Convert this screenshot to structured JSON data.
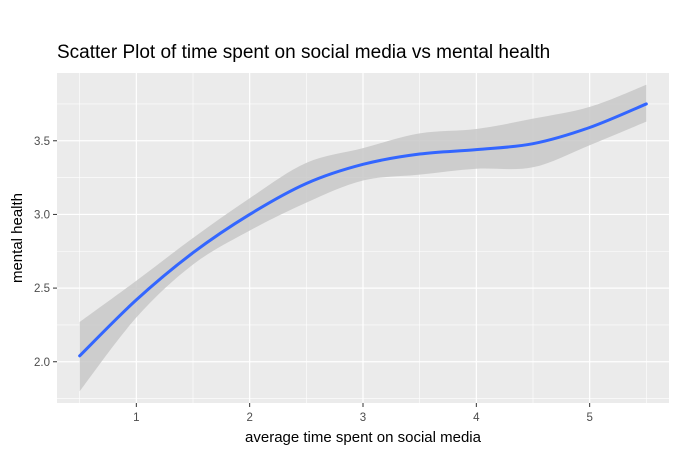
{
  "chart_data": {
    "type": "line",
    "title": "Scatter Plot of time spent on social media vs mental health",
    "xlabel": "average time spent on social media",
    "ylabel": "mental health",
    "xlim": [
      0.3,
      5.7
    ],
    "ylim": [
      1.72,
      3.96
    ],
    "x_ticks": [
      1,
      2,
      3,
      4,
      5
    ],
    "x_tick_labels": [
      "1",
      "2",
      "3",
      "4",
      "5"
    ],
    "y_ticks": [
      2.0,
      2.5,
      3.0,
      3.5
    ],
    "y_tick_labels": [
      "2.0",
      "2.5",
      "3.0",
      "3.5"
    ],
    "grid": true,
    "legend": "none",
    "colors": {
      "panel": "#ebebeb",
      "grid": "#ffffff",
      "line": "#3366ff",
      "ribbon": "#c8c8c8"
    },
    "series": [
      {
        "x": [
          0.5,
          1.0,
          1.5,
          2.0,
          2.5,
          3.0,
          3.5,
          4.0,
          4.5,
          5.0,
          5.5
        ],
        "y": [
          2.04,
          2.42,
          2.74,
          3.0,
          3.21,
          3.34,
          3.41,
          3.44,
          3.48,
          3.59,
          3.75
        ],
        "lower": [
          1.8,
          2.3,
          2.66,
          2.89,
          3.08,
          3.23,
          3.27,
          3.31,
          3.32,
          3.47,
          3.63
        ],
        "upper": [
          2.27,
          2.55,
          2.84,
          3.11,
          3.35,
          3.45,
          3.55,
          3.58,
          3.65,
          3.73,
          3.88
        ]
      }
    ]
  }
}
